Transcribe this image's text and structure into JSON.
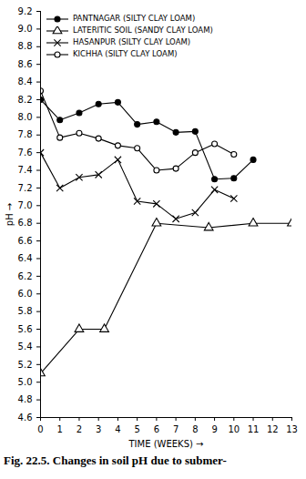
{
  "chart_data": {
    "type": "line",
    "caption": "Fig. 22.5. Changes in soil pH due to submer-",
    "xlabel": "TIME (WEEKS)",
    "ylabel": "pH →",
    "xlim": [
      0,
      13
    ],
    "xticks": [
      0,
      1,
      2,
      3,
      4,
      5,
      6,
      7,
      8,
      9,
      10,
      11,
      12,
      13
    ],
    "ylim": [
      4.6,
      9.2
    ],
    "yticks": [
      4.6,
      4.8,
      {
        "value": 5,
        "label": "5.0"
      },
      5.2,
      5.4,
      5.6,
      5.8,
      {
        "value": 6,
        "label": "6.0"
      },
      6.2,
      6.4,
      6.6,
      6.8,
      {
        "value": 7,
        "label": "7.0"
      },
      7.2,
      7.4,
      7.6,
      7.8,
      {
        "value": 8,
        "label": "8.0"
      },
      8.2,
      8.4,
      8.6,
      8.8,
      {
        "value": 9,
        "label": "9.0"
      },
      9.2
    ],
    "grid": false,
    "legend": "upper left",
    "series": [
      {
        "name": "PANTNAGAR (SILTY CLAY LOAM)",
        "color": "#000000",
        "marker": "circle",
        "line_style": "solid",
        "x": [
          0,
          1,
          2,
          3,
          4,
          5,
          6,
          7,
          8,
          9,
          10,
          11
        ],
        "values": [
          8.2,
          7.97,
          8.05,
          8.15,
          8.17,
          7.92,
          7.95,
          7.83,
          7.84,
          7.3,
          7.31,
          7.52
        ]
      },
      {
        "name": "LATERITIC SOIL (SANDY CLAY LOAM)",
        "color": "#000000",
        "marker": "triangle-open",
        "line_style": "solid",
        "x": [
          0,
          2,
          3.3,
          6,
          8.7,
          11,
          13
        ],
        "values": [
          5.1,
          5.6,
          5.6,
          6.8,
          6.75,
          6.8,
          6.8
        ]
      },
      {
        "name": "HASANPUR (SILTY CLAY LOAM)",
        "color": "#000000",
        "marker": "x",
        "line_style": "solid",
        "x": [
          0,
          1,
          2,
          3,
          4,
          5,
          6,
          7,
          8,
          9,
          10
        ],
        "values": [
          7.6,
          7.2,
          7.32,
          7.35,
          7.52,
          7.05,
          7.02,
          6.85,
          6.92,
          7.18,
          7.08
        ]
      },
      {
        "name": "KICHHA (SILTY CLAY LOAM)",
        "color": "#000000",
        "marker": "circle-open",
        "line_style": "solid",
        "x": [
          0,
          1,
          2,
          3,
          4,
          5,
          6,
          7,
          8,
          9,
          10
        ],
        "values": [
          8.3,
          7.77,
          7.82,
          7.76,
          7.68,
          7.65,
          7.4,
          7.42,
          7.6,
          7.7,
          7.58
        ]
      }
    ]
  }
}
